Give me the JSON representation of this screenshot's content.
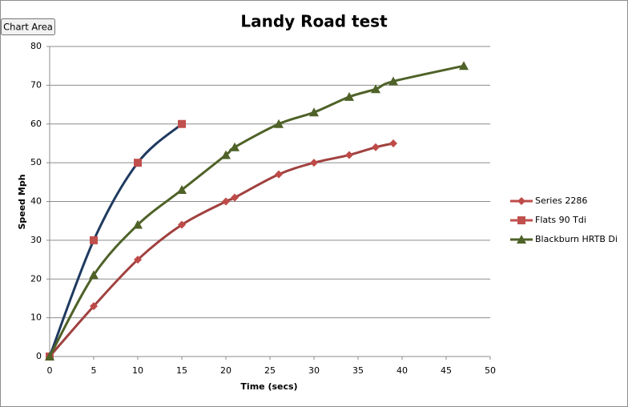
{
  "tooltip": "Chart Area",
  "chart_data": {
    "type": "line",
    "title": "Landy Road test",
    "x_label": "Time (secs)",
    "y_label": "Speed Mph",
    "xlim": [
      0,
      50
    ],
    "xticks": [
      0,
      5,
      10,
      15,
      20,
      25,
      30,
      35,
      40,
      45,
      50
    ],
    "ylim": [
      0,
      80
    ],
    "yticks": [
      0,
      10,
      20,
      30,
      40,
      50,
      60,
      70,
      80
    ],
    "grid": true,
    "legend": "right",
    "smooth": true,
    "series": [
      {
        "name": "Series 2286",
        "color": "#be4b48",
        "line_color": "#a0413f",
        "marker": "diamond",
        "x": [
          0,
          5,
          10,
          15,
          20,
          21,
          26,
          30,
          34,
          37,
          39
        ],
        "values": [
          0,
          13,
          25,
          34,
          40,
          41,
          47,
          50,
          52,
          54,
          55
        ]
      },
      {
        "name": "Flats 90 Tdi",
        "color": "#c0504d",
        "line_color": "#1f3a60",
        "marker": "square",
        "x": [
          0,
          5,
          10,
          15
        ],
        "values": [
          0,
          30,
          50,
          60
        ]
      },
      {
        "name": "Blackburn HRTB Di",
        "color": "#4f6228",
        "line_color": "#4f6228",
        "marker": "triangle",
        "x": [
          0,
          5,
          10,
          15,
          20,
          21,
          26,
          30,
          34,
          37,
          39,
          47
        ],
        "values": [
          0,
          21,
          34,
          43,
          52,
          54,
          60,
          63,
          67,
          69,
          71,
          75
        ]
      }
    ]
  }
}
